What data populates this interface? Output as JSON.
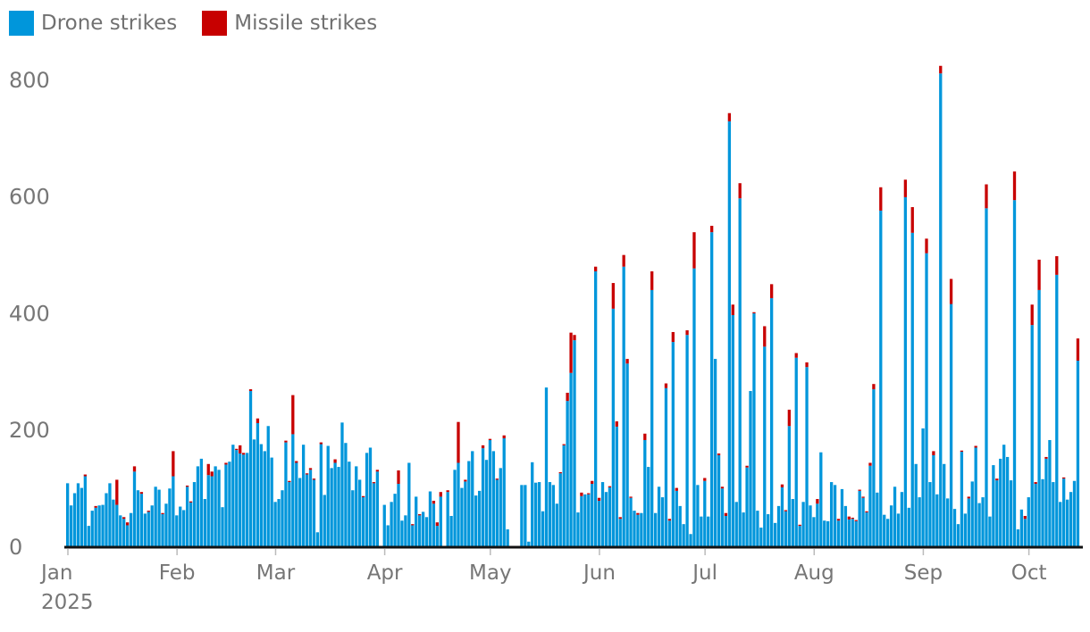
{
  "legend": [
    {
      "label": "Drone strikes",
      "color": "#0096DB"
    },
    {
      "label": "Missile strikes",
      "color": "#C70000"
    }
  ],
  "chart_data": {
    "type": "bar",
    "stacked": true,
    "title": "",
    "xlabel": "",
    "ylabel": "",
    "ylim": [
      0,
      830
    ],
    "grid": false,
    "legend_position": "top-left",
    "y_ticks": [
      "0",
      "200",
      "400",
      "600",
      "800"
    ],
    "x_ticks": [
      {
        "label": "Jan",
        "date": "2025-01-01",
        "sub": "2025"
      },
      {
        "label": "Feb",
        "date": "2025-02-01"
      },
      {
        "label": "Mar",
        "date": "2025-03-01"
      },
      {
        "label": "Apr",
        "date": "2025-04-01"
      },
      {
        "label": "May",
        "date": "2025-05-01"
      },
      {
        "label": "Jun",
        "date": "2025-06-01"
      },
      {
        "label": "Jul",
        "date": "2025-07-01"
      },
      {
        "label": "Aug",
        "date": "2025-08-01"
      },
      {
        "label": "Sep",
        "date": "2025-09-01"
      },
      {
        "label": "Oct",
        "date": "2025-10-01"
      }
    ],
    "x_range": [
      "2025-01-01",
      "2025-10-15"
    ],
    "series": [
      {
        "name": "Drone strikes",
        "color": "#0096DB",
        "values": [
          108,
          70,
          91,
          108,
          100,
          120,
          35,
          61,
          66,
          70,
          71,
          91,
          108,
          80,
          71,
          53,
          47,
          36,
          57,
          128,
          96,
          90,
          56,
          59,
          70,
          102,
          97,
          55,
          73,
          99,
          120,
          53,
          68,
          62,
          102,
          75,
          110,
          137,
          150,
          81,
          122,
          120,
          137,
          131,
          67,
          140,
          145,
          174,
          165,
          159,
          157,
          160,
          266,
          183,
          211,
          175,
          163,
          206,
          152,
          76,
          81,
          96,
          178,
          110,
          192,
          143,
          117,
          174,
          123,
          131,
          114,
          24,
          175,
          88,
          172,
          134,
          143,
          136,
          212,
          177,
          145,
          96,
          137,
          114,
          84,
          160,
          169,
          108,
          128,
          0,
          71,
          36,
          76,
          90,
          107,
          44,
          53,
          143,
          36,
          85,
          53,
          59,
          50,
          94,
          73,
          35,
          85,
          0,
          93,
          52,
          131,
          143,
          100,
          111,
          146,
          163,
          87,
          95,
          168,
          148,
          182,
          163,
          114,
          134,
          185,
          29,
          0,
          0,
          0,
          105,
          105,
          8,
          144,
          109,
          110,
          60,
          272,
          110,
          105,
          73,
          125,
          173,
          249,
          297,
          353,
          58,
          86,
          89,
          89,
          107,
          471,
          78,
          110,
          93,
          101,
          407,
          205,
          47,
          479,
          313,
          83,
          61,
          54,
          57,
          182,
          136,
          439,
          57,
          102,
          84,
          271,
          44,
          350,
          95,
          69,
          38,
          362,
          21,
          476,
          105,
          51,
          112,
          51,
          538,
          321,
          156,
          99,
          52,
          728,
          396,
          76,
          596,
          58,
          135,
          266,
          399,
          61,
          32,
          342,
          55,
          425,
          40,
          69,
          101,
          60,
          206,
          81,
          323,
          35,
          76,
          307,
          70,
          50,
          73,
          161,
          44,
          43,
          110,
          105,
          44,
          98,
          69,
          46,
          47,
          43,
          95,
          83,
          58,
          138,
          269,
          92,
          575,
          54,
          47,
          70,
          102,
          56,
          93,
          598,
          66,
          537,
          141,
          84,
          202,
          502,
          110,
          156,
          89,
          810,
          141,
          82,
          415,
          64,
          38,
          162,
          56,
          82,
          111,
          169,
          74,
          84,
          579,
          51,
          139,
          113,
          150,
          174,
          153,
          113,
          593,
          29,
          63,
          47,
          84,
          379,
          107,
          439,
          115,
          150,
          182,
          110,
          465,
          76,
          116,
          80,
          93,
          112,
          318
        ]
      },
      {
        "name": "Missile strikes",
        "color": "#C70000",
        "values": [
          0,
          0,
          0,
          0,
          0,
          3,
          0,
          0,
          3,
          0,
          0,
          0,
          0,
          0,
          43,
          0,
          3,
          5,
          0,
          9,
          0,
          3,
          0,
          2,
          0,
          0,
          0,
          2,
          0,
          0,
          43,
          0,
          0,
          0,
          2,
          2,
          0,
          0,
          0,
          0,
          19,
          8,
          0,
          0,
          0,
          3,
          0,
          0,
          2,
          14,
          3,
          0,
          3,
          0,
          8,
          0,
          0,
          0,
          0,
          0,
          0,
          0,
          3,
          2,
          67,
          3,
          0,
          0,
          2,
          3,
          2,
          0,
          3,
          0,
          0,
          0,
          6,
          0,
          0,
          0,
          0,
          0,
          0,
          0,
          2,
          0,
          0,
          2,
          3,
          0,
          0,
          0,
          0,
          0,
          23,
          0,
          0,
          0,
          2,
          0,
          2,
          0,
          0,
          0,
          5,
          6,
          8,
          0,
          3,
          0,
          0,
          70,
          0,
          3,
          0,
          0,
          0,
          0,
          5,
          0,
          2,
          0,
          2,
          0,
          5,
          0,
          0,
          0,
          0,
          0,
          0,
          0,
          0,
          0,
          0,
          0,
          0,
          0,
          0,
          0,
          2,
          2,
          14,
          69,
          9,
          0,
          6,
          0,
          2,
          5,
          8,
          5,
          0,
          0,
          2,
          44,
          9,
          3,
          20,
          8,
          2,
          0,
          3,
          0,
          11,
          0,
          32,
          0,
          0,
          0,
          8,
          3,
          17,
          5,
          0,
          0,
          8,
          0,
          62,
          0,
          0,
          5,
          0,
          11,
          0,
          3,
          3,
          5,
          14,
          18,
          0,
          26,
          0,
          3,
          0,
          2,
          0,
          0,
          35,
          0,
          24,
          0,
          0,
          5,
          2,
          28,
          0,
          8,
          2,
          0,
          8,
          0,
          0,
          8,
          0,
          0,
          0,
          0,
          0,
          3,
          0,
          0,
          5,
          2,
          2,
          2,
          2,
          2,
          5,
          9,
          0,
          40,
          0,
          0,
          0,
          0,
          0,
          0,
          30,
          0,
          44,
          0,
          0,
          0,
          25,
          0,
          7,
          0,
          13,
          0,
          0,
          43,
          0,
          0,
          2,
          0,
          3,
          0,
          3,
          0,
          0,
          41,
          0,
          0,
          3,
          0,
          0,
          0,
          0,
          49,
          0,
          0,
          5,
          0,
          35,
          3,
          52,
          0,
          3,
          0,
          0,
          32,
          0,
          2,
          0,
          0,
          0,
          38
        ]
      }
    ]
  }
}
